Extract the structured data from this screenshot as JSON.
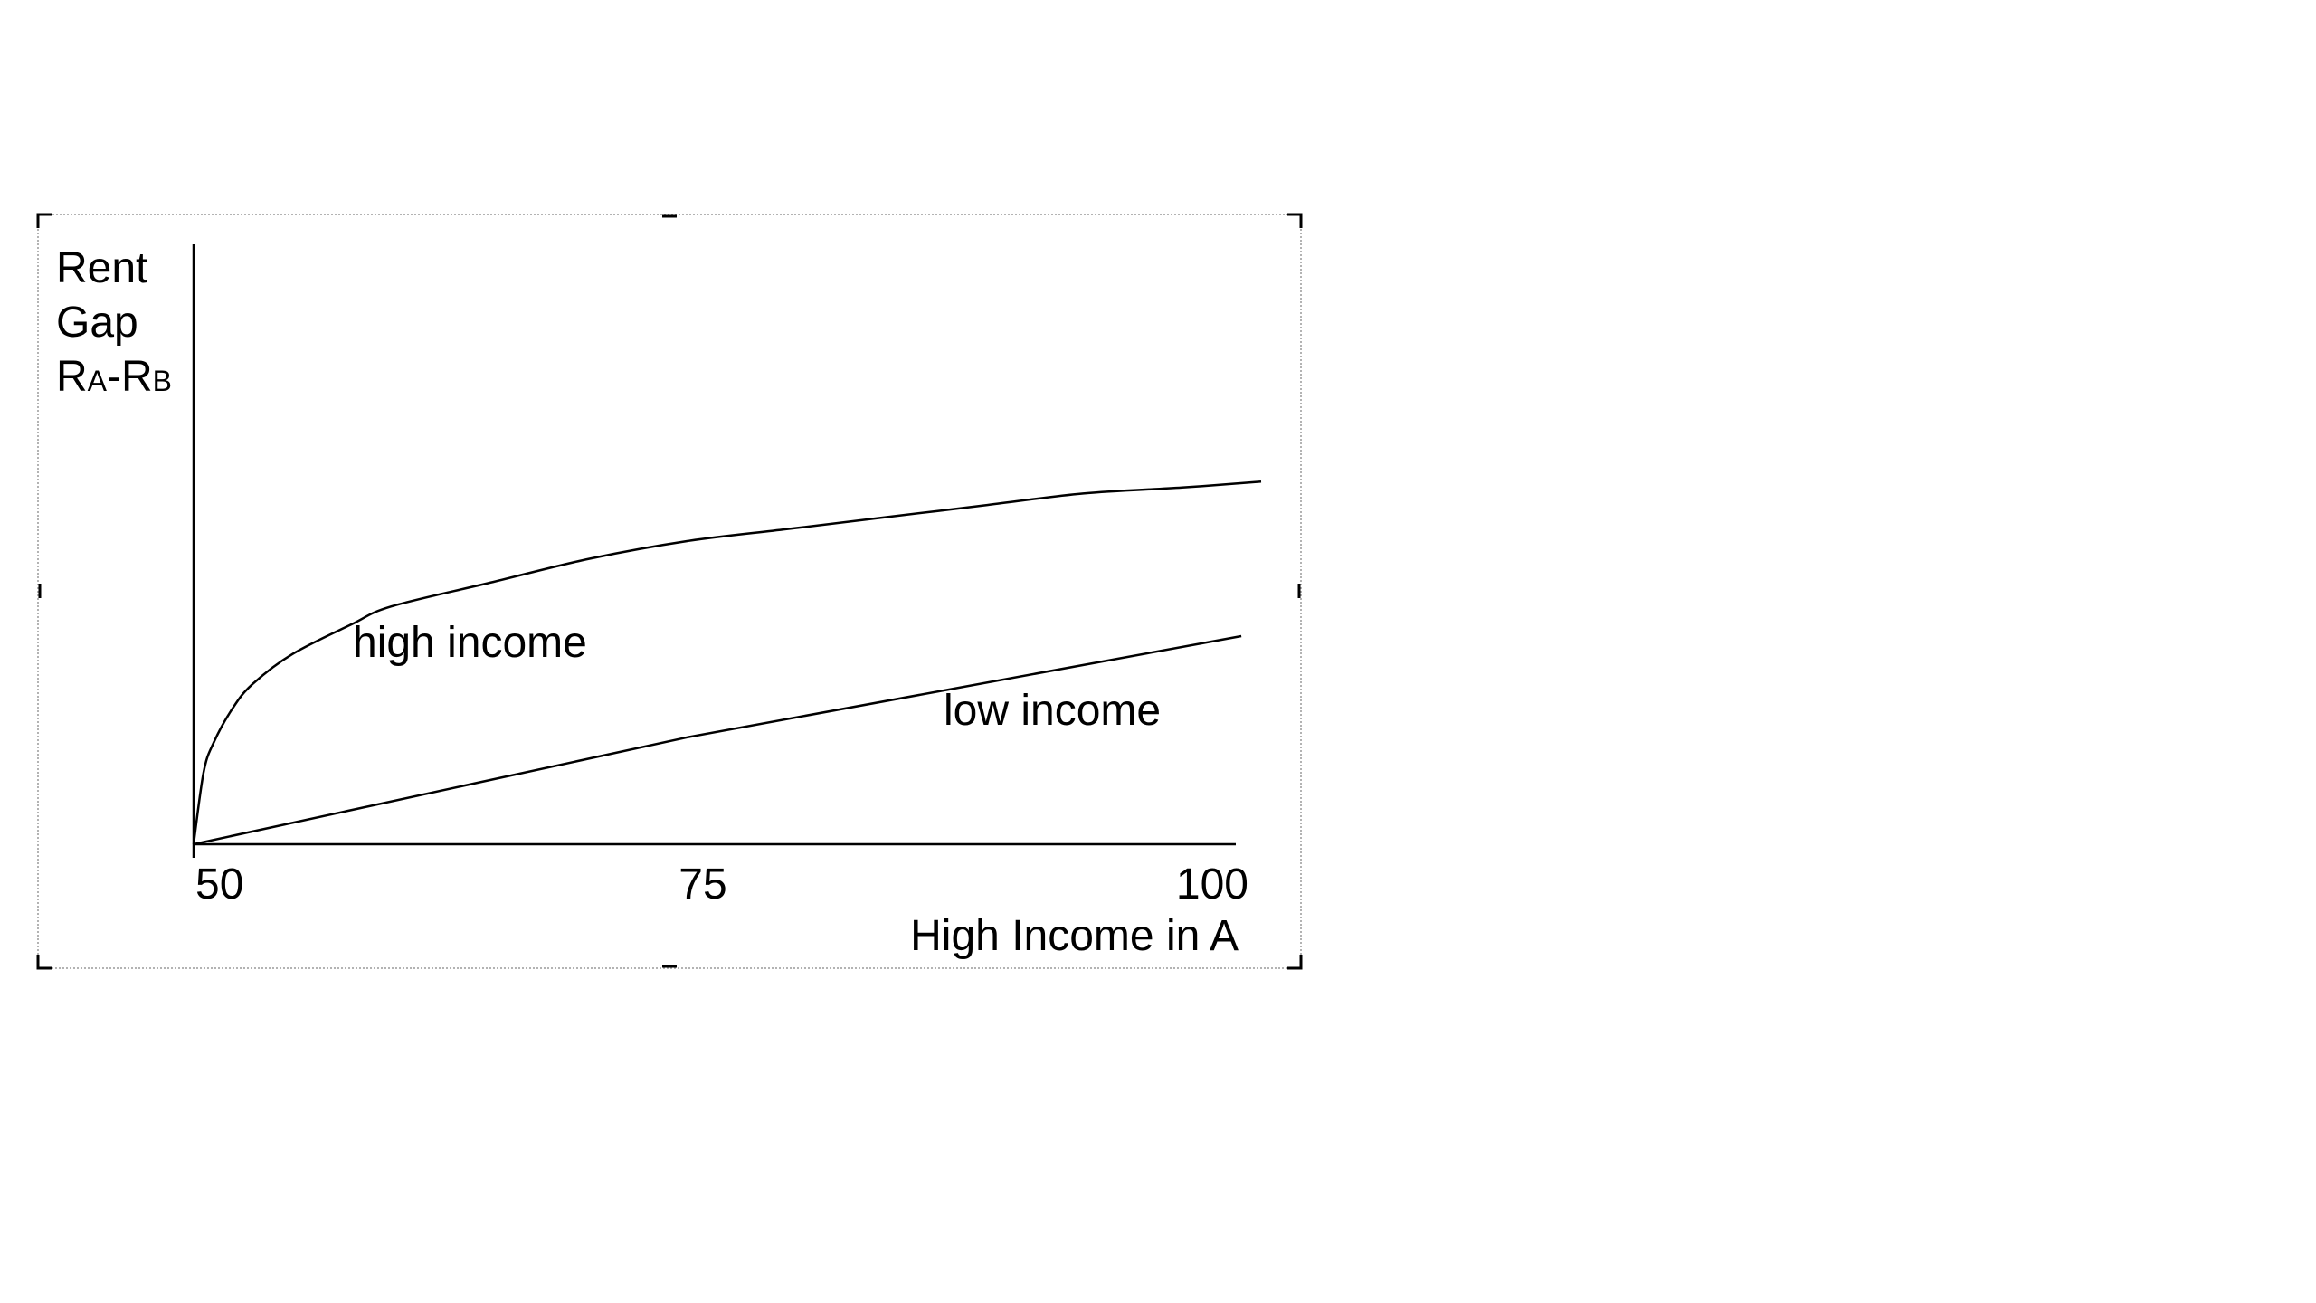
{
  "chart_data": {
    "type": "line",
    "xlabel": "High Income in A",
    "ylabel": {
      "lines": [
        "Rent",
        "Gap"
      ],
      "formula": {
        "r1": "R",
        "sub1": "A",
        "dash": "-",
        "r2": "R",
        "sub2": "B"
      }
    },
    "x_ticks": [
      {
        "value": 50,
        "label": "50"
      },
      {
        "value": 75,
        "label": "75"
      },
      {
        "value": 100,
        "label": "100"
      }
    ],
    "xlim": [
      50,
      104
    ],
    "ylim": [
      0,
      1
    ],
    "grid": false,
    "legend": "none",
    "series": [
      {
        "name": "high income",
        "x": [
          50,
          50.5,
          51,
          52,
          53,
          55,
          58,
          60,
          65,
          70,
          75,
          80,
          85,
          90,
          95,
          100,
          104
        ],
        "y": [
          0,
          0.12,
          0.17,
          0.23,
          0.27,
          0.32,
          0.37,
          0.4,
          0.44,
          0.48,
          0.51,
          0.53,
          0.55,
          0.57,
          0.59,
          0.6,
          0.61
        ]
      },
      {
        "name": "low income",
        "x": [
          50,
          75,
          103
        ],
        "y": [
          0,
          0.18,
          0.35
        ]
      }
    ],
    "colors": {
      "line": "#000000",
      "frame": "#9a9a9a",
      "handles": "#000000"
    }
  }
}
